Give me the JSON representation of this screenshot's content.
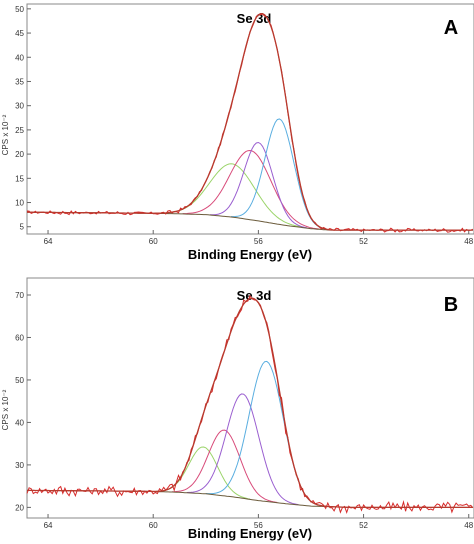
{
  "chart_data": [
    {
      "type": "line",
      "title": "Se 3d",
      "panel_label": "A",
      "xlabel": "Binding Energy (eV)",
      "ylabel": "CPS x 10⁻²",
      "xlim": [
        64.8,
        47.8
      ],
      "ylim": [
        3.5,
        51
      ],
      "x_ticks": [
        64,
        60,
        56,
        52,
        48
      ],
      "y_ticks": [
        5,
        10,
        15,
        20,
        25,
        30,
        35,
        40,
        45,
        50
      ],
      "colors": {
        "raw": "#d62a2a",
        "envelope": "#b83a2e",
        "background": "#6a5a3a",
        "c1": "#9bd46a",
        "c2": "#d84b7a",
        "c3": "#9a5fd0",
        "c4": "#5aaee0"
      },
      "background": {
        "x": [
          64.8,
          60.5,
          59.2,
          58.0,
          57.0,
          56.0,
          55.0,
          54.0,
          53.3,
          47.8
        ],
        "y": [
          8.0,
          7.8,
          7.7,
          7.5,
          7.0,
          6.2,
          5.3,
          4.6,
          4.3,
          4.3
        ]
      },
      "series": [
        {
          "center": 57.0,
          "amp": 11.0,
          "sigma": 0.85
        },
        {
          "center": 56.3,
          "amp": 14.3,
          "sigma": 0.78
        },
        {
          "center": 56.0,
          "amp": 16.2,
          "sigma": 0.55
        },
        {
          "center": 55.2,
          "amp": 21.8,
          "sigma": 0.55
        }
      ],
      "envelope_peak": {
        "x": 56.0,
        "y": 47.8
      }
    },
    {
      "type": "line",
      "title": "Se 3d",
      "panel_label": "B",
      "xlabel": "Binding Energy (eV)",
      "ylabel": "CPS x 10⁻²",
      "xlim": [
        64.8,
        47.8
      ],
      "ylim": [
        17.5,
        74
      ],
      "x_ticks": [
        64,
        60,
        56,
        52,
        48
      ],
      "y_ticks": [
        20,
        30,
        40,
        50,
        60,
        70
      ],
      "colors": {
        "raw": "#d62a2a",
        "envelope": "#b83a2e",
        "background": "#6a5a3a",
        "c1": "#9bd46a",
        "c2": "#d84b7a",
        "c3": "#9a5fd0",
        "c4": "#5aaee0"
      },
      "background": {
        "x": [
          64.8,
          60.5,
          59.2,
          58.0,
          57.0,
          56.0,
          55.0,
          54.0,
          52.5,
          47.8
        ],
        "y": [
          24.0,
          23.8,
          23.6,
          23.2,
          22.5,
          21.6,
          20.9,
          20.3,
          20.0,
          20.0
        ]
      },
      "series": [
        {
          "center": 58.1,
          "amp": 11.0,
          "sigma": 0.55
        },
        {
          "center": 57.3,
          "amp": 15.5,
          "sigma": 0.6
        },
        {
          "center": 56.6,
          "amp": 24.6,
          "sigma": 0.62
        },
        {
          "center": 55.7,
          "amp": 33.0,
          "sigma": 0.65
        }
      ],
      "envelope_peak": {
        "x": 56.1,
        "y": 69.0
      }
    }
  ]
}
